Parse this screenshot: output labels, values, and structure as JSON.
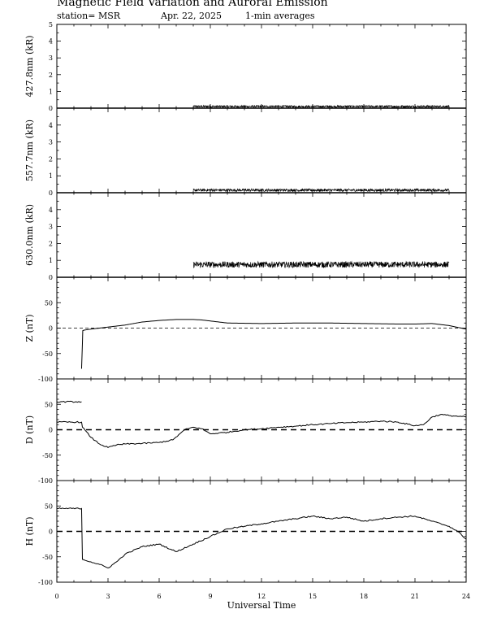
{
  "header": {
    "title": "Magnetic Field Variation and Auroral Emission",
    "station": "station= MSR",
    "date": "Apr. 22, 2025",
    "averaging": "1-min averages"
  },
  "chart_data": {
    "type": "line",
    "xlabel": "Universal Time",
    "x_ticks": [
      0,
      3,
      6,
      9,
      12,
      15,
      18,
      21,
      24
    ],
    "xlim": [
      0,
      24
    ],
    "panels": [
      {
        "name": "427.8nm",
        "ylabel": "427.8nm (kR)",
        "ylim": [
          0,
          5
        ],
        "yticks": [
          0,
          1,
          2,
          3,
          4,
          5
        ],
        "zero_line": "none",
        "series": [
          {
            "style": "noisy",
            "noise": 0.06,
            "x": [
              8,
              23
            ],
            "y": [
              0.1,
              0.1
            ]
          }
        ]
      },
      {
        "name": "557.7nm",
        "ylabel": "557.7nm (kR)",
        "ylim": [
          0,
          5
        ],
        "yticks": [
          0,
          1,
          2,
          3,
          4
        ],
        "zero_line": "none",
        "series": [
          {
            "style": "noisy",
            "noise": 0.08,
            "x": [
              8,
              23
            ],
            "y": [
              0.15,
              0.15
            ]
          }
        ]
      },
      {
        "name": "630.0nm",
        "ylabel": "630.0nm (kR)",
        "ylim": [
          0,
          5
        ],
        "yticks": [
          0,
          1,
          2,
          3,
          4
        ],
        "zero_line": "none",
        "series": [
          {
            "style": "noisy",
            "noise": 0.18,
            "x": [
              8,
              23
            ],
            "y": [
              0.75,
              0.75
            ]
          }
        ]
      },
      {
        "name": "Z",
        "ylabel": "Z (nT)",
        "ylim": [
          -100,
          100
        ],
        "yticks": [
          -100,
          -50,
          0,
          50
        ],
        "zero_line": "dashed-thin",
        "series": [
          {
            "style": "line",
            "x": [
              1.45,
              1.5,
              1.52,
              1.6,
              2,
              2.5,
              3,
              4,
              5,
              6,
              7,
              8,
              8.5,
              9,
              10,
              12,
              14,
              16,
              18,
              20,
              21,
              22,
              23,
              24
            ],
            "y": [
              -80,
              -30,
              -5,
              -4,
              -2,
              0,
              2,
              6,
              12,
              15,
              17,
              17,
              16,
              14,
              10,
              9,
              10,
              10,
              9,
              8,
              8,
              9,
              5,
              -2
            ]
          }
        ]
      },
      {
        "name": "D",
        "ylabel": "D (nT)",
        "ylim": [
          -100,
          100
        ],
        "yticks": [
          -100,
          -50,
          0,
          50
        ],
        "zero_line": "dashed-thick",
        "series": [
          {
            "style": "line",
            "x": [
              0,
              1.45
            ],
            "y": [
              55,
              55
            ]
          },
          {
            "style": "line",
            "x": [
              0,
              1.45,
              1.5,
              2,
              2.5,
              3,
              3.5,
              4,
              5,
              6,
              6.8,
              7.5,
              8,
              8.5,
              9,
              10,
              11,
              12,
              13,
              14,
              15,
              16,
              17,
              18,
              19,
              20,
              21,
              21.5,
              22,
              22.5,
              23,
              24
            ],
            "y": [
              15,
              15,
              5,
              -15,
              -28,
              -35,
              -30,
              -28,
              -27,
              -25,
              -20,
              0,
              5,
              2,
              -8,
              -5,
              0,
              2,
              5,
              7,
              10,
              12,
              14,
              15,
              17,
              15,
              8,
              10,
              25,
              30,
              28,
              25
            ]
          }
        ]
      },
      {
        "name": "H",
        "ylabel": "H (nT)",
        "ylim": [
          -100,
          100
        ],
        "yticks": [
          -100,
          -50,
          0,
          50
        ],
        "zero_line": "dashed-thick",
        "series": [
          {
            "style": "line",
            "x": [
              0,
              1.45,
              1.5,
              2,
              2.5,
              3,
              3.5,
              4,
              5,
              6,
              7,
              8,
              9,
              10,
              11,
              12,
              13,
              14,
              15,
              16,
              17,
              18,
              19,
              20,
              21,
              22,
              23,
              23.5,
              24
            ],
            "y": [
              45,
              45,
              -55,
              -60,
              -65,
              -72,
              -60,
              -45,
              -30,
              -25,
              -40,
              -25,
              -10,
              5,
              10,
              15,
              20,
              25,
              30,
              25,
              28,
              20,
              25,
              28,
              30,
              20,
              10,
              0,
              -15
            ]
          }
        ]
      }
    ]
  }
}
